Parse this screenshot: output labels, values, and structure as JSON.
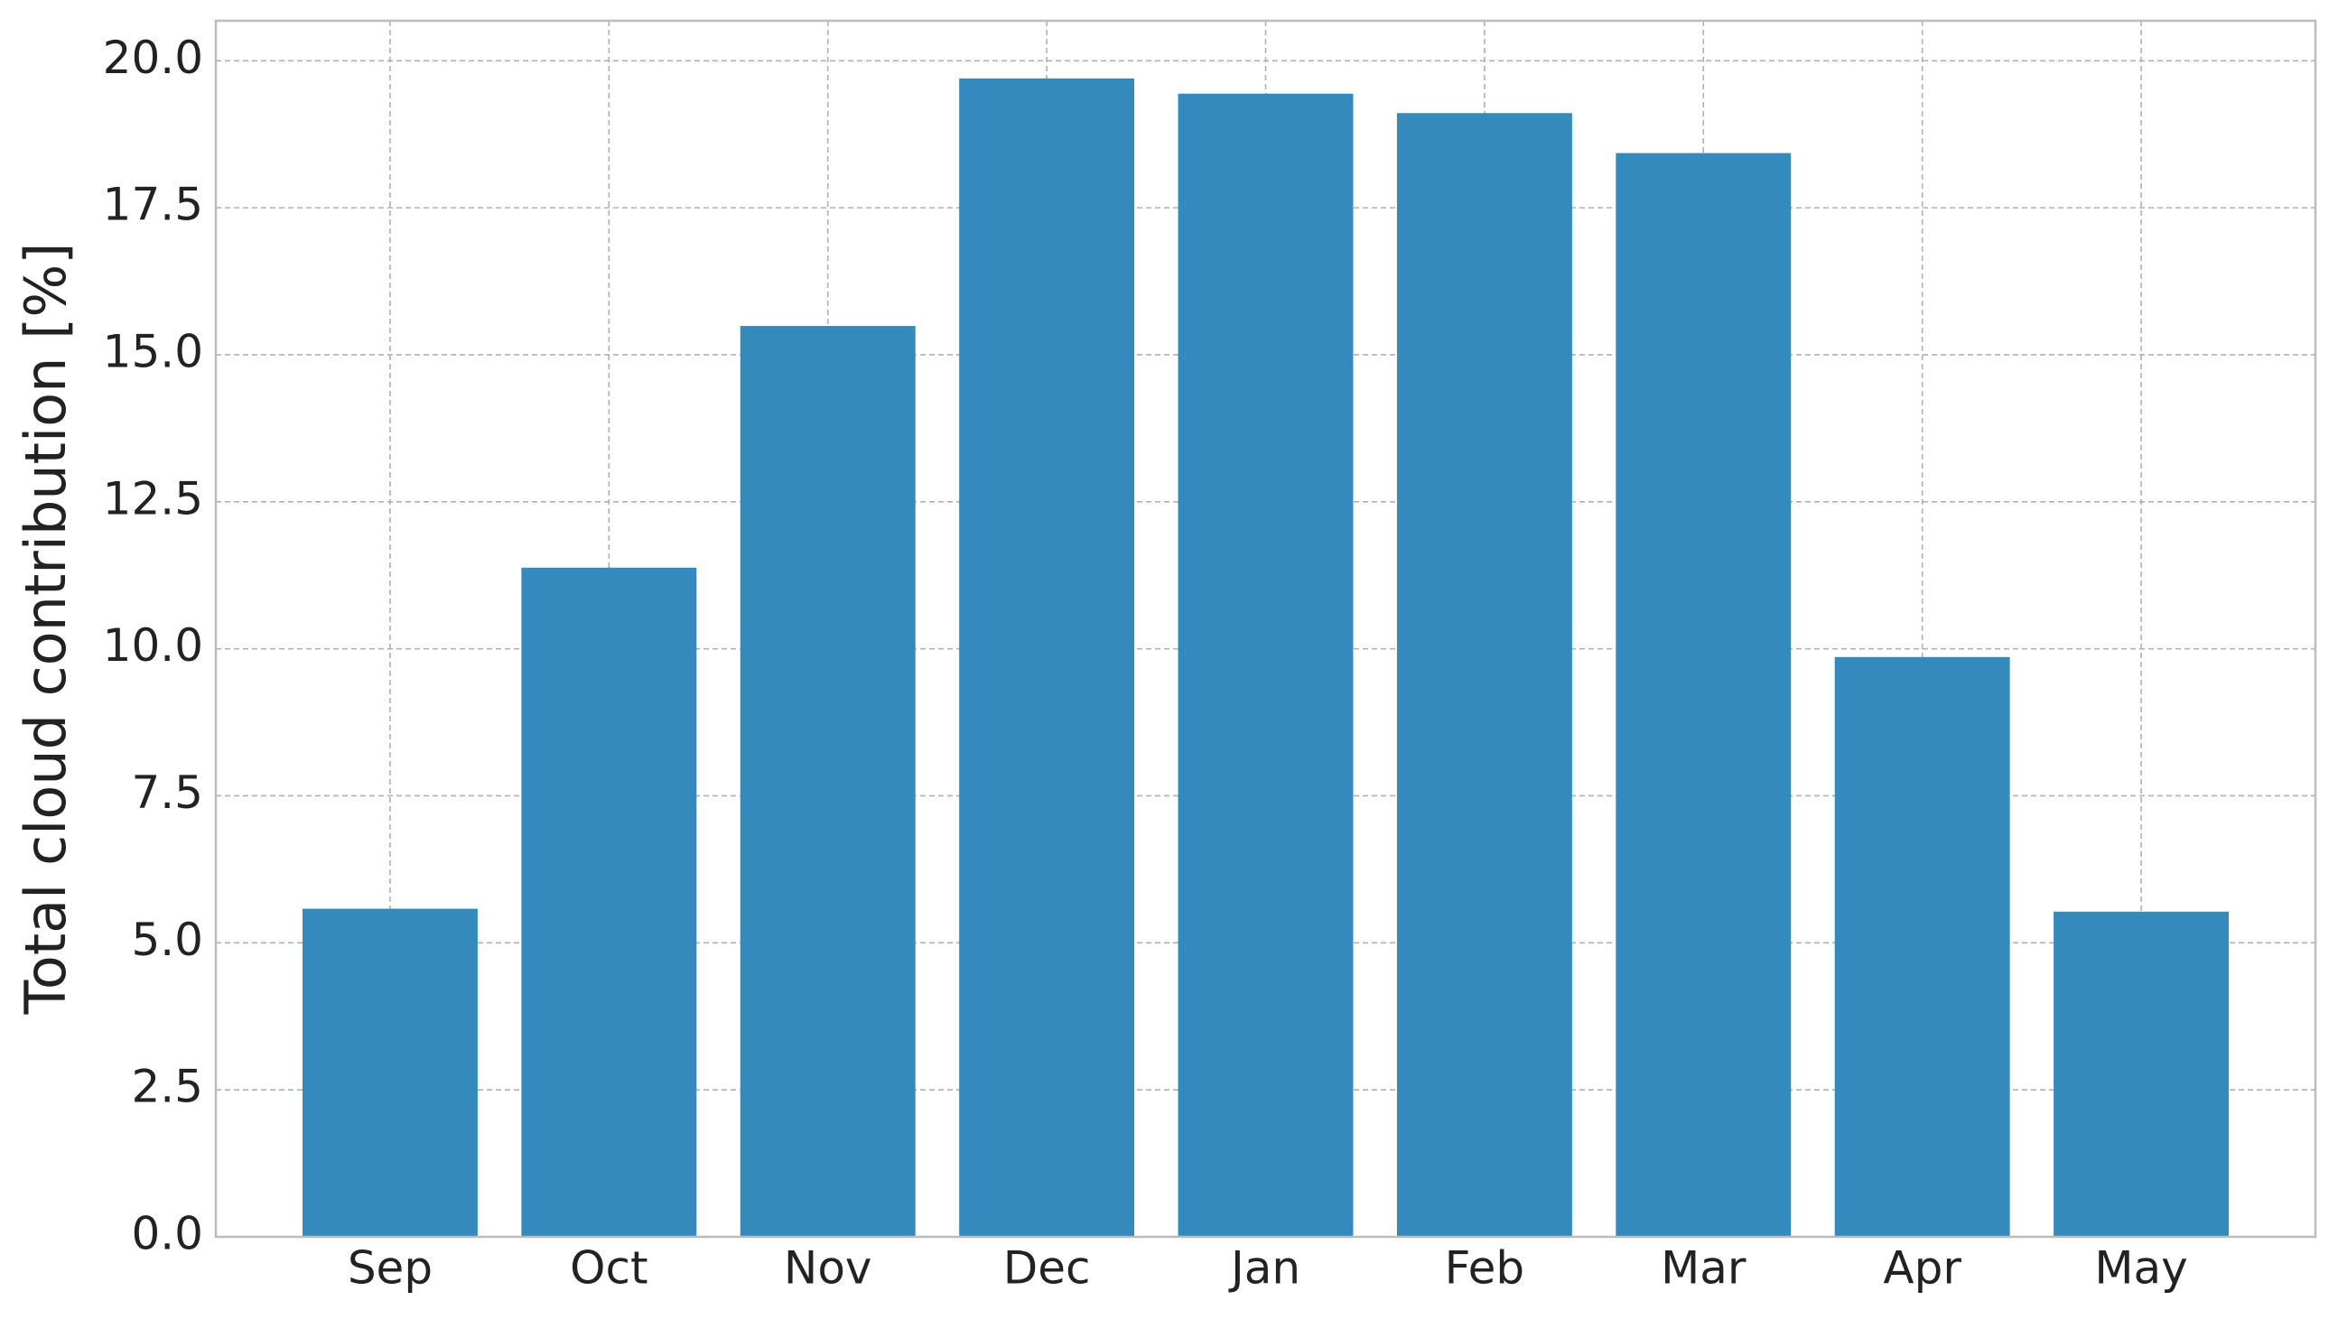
{
  "chart_data": {
    "type": "bar",
    "y_label": "Total cloud contribution [%]",
    "categories": [
      "Sep",
      "Oct",
      "Nov",
      "Dec",
      "Jan",
      "Feb",
      "Mar",
      "Apr",
      "May"
    ],
    "values": [
      5.58,
      11.38,
      15.49,
      19.7,
      19.44,
      19.11,
      18.43,
      9.86,
      5.53
    ],
    "color": "#348abd",
    "ylim": [
      0,
      20.68
    ],
    "yticks": [
      {
        "value": 0,
        "label": "0.0"
      },
      2.5,
      {
        "value": 5,
        "label": "5.0"
      },
      7.5,
      {
        "value": 10,
        "label": "10.0"
      },
      12.5,
      {
        "value": 15,
        "label": "15.0"
      },
      17.5,
      {
        "value": 20,
        "label": "20.0"
      }
    ],
    "grid": true
  }
}
